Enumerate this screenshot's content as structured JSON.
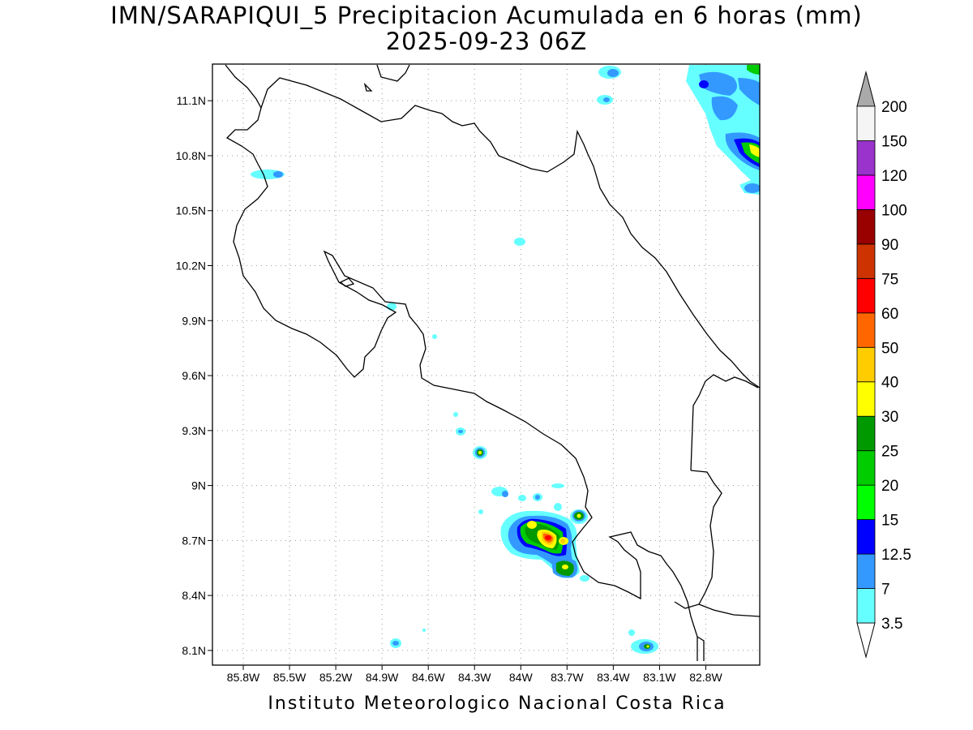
{
  "title_line1": "IMN/SARAPIQUI_5 Precipitacion Acumulada en 6 horas (mm)",
  "title_line2": "2025-09-23 06Z",
  "footer": "Instituto Meteorologico Nacional Costa Rica",
  "map": {
    "lon_range": [
      -86.0,
      -82.45
    ],
    "lat_range": [
      8.02,
      11.3
    ],
    "grid": "dotted",
    "x_tick_labels": [
      "85.8W",
      "85.5W",
      "85.2W",
      "84.9W",
      "84.6W",
      "84.3W",
      "84W",
      "83.7W",
      "83.4W",
      "83.1W",
      "82.8W"
    ],
    "x_tick_values": [
      -85.8,
      -85.5,
      -85.2,
      -84.9,
      -84.6,
      -84.3,
      -84.0,
      -83.7,
      -83.4,
      -83.1,
      -82.8
    ],
    "y_tick_labels": [
      "8.1N",
      "8.4N",
      "8.7N",
      "9N",
      "9.3N",
      "9.6N",
      "9.9N",
      "10.2N",
      "10.5N",
      "10.8N",
      "11.1N"
    ],
    "y_tick_values": [
      8.1,
      8.4,
      8.7,
      9.0,
      9.3,
      9.6,
      9.9,
      10.2,
      10.5,
      10.8,
      11.1
    ]
  },
  "colorbar": {
    "labels": [
      "3.5",
      "7",
      "12.5",
      "15",
      "20",
      "25",
      "30",
      "40",
      "50",
      "60",
      "75",
      "90",
      "100",
      "120",
      "150",
      "200"
    ],
    "colors": [
      "#66ffff",
      "#3399ff",
      "#0000ff",
      "#00ff00",
      "#00cc00",
      "#009900",
      "#ffff00",
      "#ffcc00",
      "#ff6600",
      "#ff0000",
      "#cc3300",
      "#990000",
      "#ff00ff",
      "#9933cc",
      "#f5f5f5"
    ],
    "over_color": "#aaaaaa"
  }
}
